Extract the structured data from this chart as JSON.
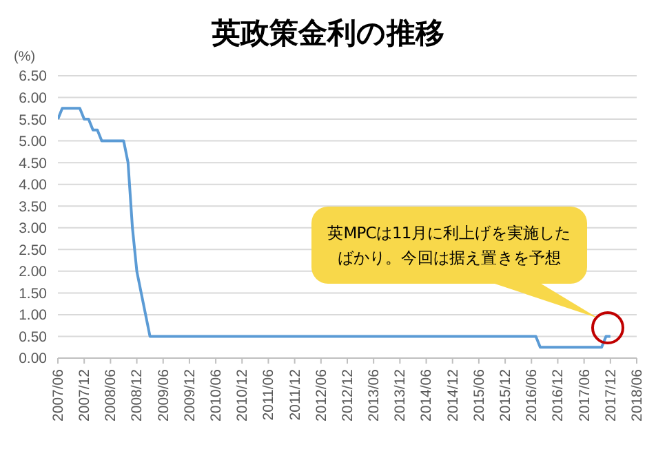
{
  "chart_data": {
    "type": "line",
    "title": "英政策金利の推移",
    "ylabel": "(%)",
    "x": [
      "2007-06",
      "2007-07",
      "2007-11",
      "2007-12",
      "2008-01",
      "2008-02",
      "2008-03",
      "2008-04",
      "2008-09",
      "2008-10",
      "2008-11",
      "2008-12",
      "2009-01",
      "2009-02",
      "2009-03",
      "2016-07",
      "2016-08",
      "2017-10",
      "2017-11",
      "2017-12"
    ],
    "series": [
      {
        "color": "#5b9bd5",
        "values": [
          5.5,
          5.75,
          5.75,
          5.5,
          5.5,
          5.25,
          5.25,
          5.0,
          5.0,
          4.5,
          3.0,
          2.0,
          1.5,
          1.0,
          0.5,
          0.5,
          0.25,
          0.25,
          0.5,
          0.5
        ]
      }
    ],
    "xlim": [
      "2007-06",
      "2018-06"
    ],
    "xticks": [
      {
        "value": "2007-06",
        "label": "2007/06"
      },
      {
        "value": "2007-12",
        "label": "2007/12"
      },
      {
        "value": "2008-06",
        "label": "2008/06"
      },
      {
        "value": "2008-12",
        "label": "2008/12"
      },
      {
        "value": "2009-06",
        "label": "2009/06"
      },
      {
        "value": "2009-12",
        "label": "2009/12"
      },
      {
        "value": "2010-06",
        "label": "2010/06"
      },
      {
        "value": "2010-12",
        "label": "2010/12"
      },
      {
        "value": "2011-06",
        "label": "2011/06"
      },
      {
        "value": "2011-12",
        "label": "2011/12"
      },
      {
        "value": "2012-06",
        "label": "2012/06"
      },
      {
        "value": "2012-12",
        "label": "2012/12"
      },
      {
        "value": "2013-06",
        "label": "2013/06"
      },
      {
        "value": "2013-12",
        "label": "2013/12"
      },
      {
        "value": "2014-06",
        "label": "2014/06"
      },
      {
        "value": "2014-12",
        "label": "2014/12"
      },
      {
        "value": "2015-06",
        "label": "2015/06"
      },
      {
        "value": "2015-12",
        "label": "2015/12"
      },
      {
        "value": "2016-06",
        "label": "2016/06"
      },
      {
        "value": "2016-12",
        "label": "2016/12"
      },
      {
        "value": "2017-06",
        "label": "2017/06"
      },
      {
        "value": "2017-12",
        "label": "2017/12"
      },
      {
        "value": "2018-06",
        "label": "2018/06"
      }
    ],
    "ylim": [
      0,
      6.5
    ],
    "yticks": [
      {
        "value": 0,
        "label": "0.00"
      },
      {
        "value": 0.5,
        "label": "0.50"
      },
      {
        "value": 1,
        "label": "1.00"
      },
      {
        "value": 1.5,
        "label": "1.50"
      },
      {
        "value": 2,
        "label": "2.00"
      },
      {
        "value": 2.5,
        "label": "2.50"
      },
      {
        "value": 3,
        "label": "3.00"
      },
      {
        "value": 3.5,
        "label": "3.50"
      },
      {
        "value": 4,
        "label": "4.00"
      },
      {
        "value": 4.5,
        "label": "4.50"
      },
      {
        "value": 5,
        "label": "5.00"
      },
      {
        "value": 5.5,
        "label": "5.50"
      },
      {
        "value": 6,
        "label": "6.00"
      },
      {
        "value": 6.5,
        "label": "6.50"
      }
    ],
    "grid": "y",
    "marker": "none",
    "line_style": "solid",
    "annotations": [
      "英MPCは11月に利上げを実施したばかり。今回は据え置きを予想"
    ]
  }
}
